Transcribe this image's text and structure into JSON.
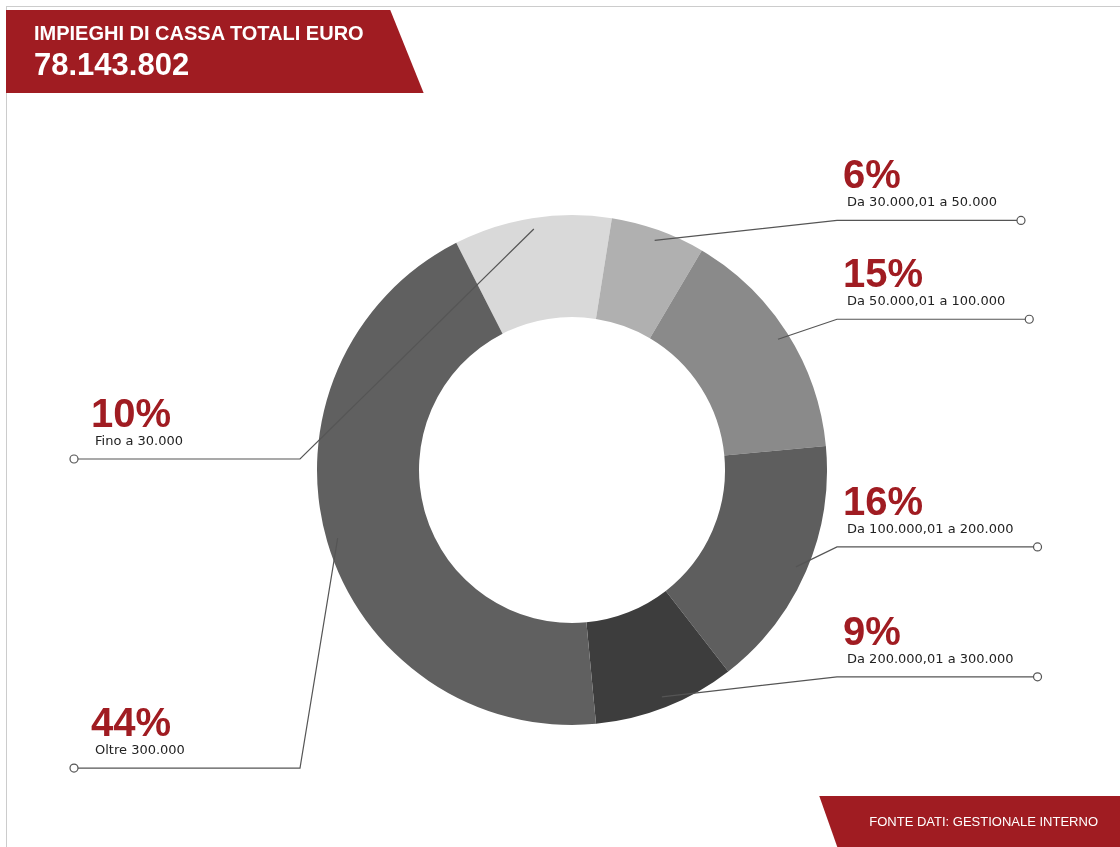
{
  "chart_data": {
    "type": "donut",
    "title": "IMPIEGHI DI CASSA TOTALI EURO",
    "subtitle": "78.143.802",
    "categories": [
      "Fino a 30.000",
      "Da 30.000,01 a 50.000",
      "Da 50.000,01 a 100.000",
      "Da 100.000,01 a 200.000",
      "Da 200.000,01 a 300.000",
      "Oltre 300.000"
    ],
    "values": [
      10,
      6,
      15,
      16,
      9,
      44
    ],
    "value_labels": [
      "10%",
      "6%",
      "15%",
      "16%",
      "9%",
      "44%"
    ],
    "colors": [
      "#d9d9d9",
      "#b0b0b0",
      "#8a8a8a",
      "#5e5e5e",
      "#3d3d3d",
      "#606060"
    ],
    "legend": false,
    "annotations": [
      "FONTE DATI: GESTIONALE INTERNO"
    ]
  }
}
